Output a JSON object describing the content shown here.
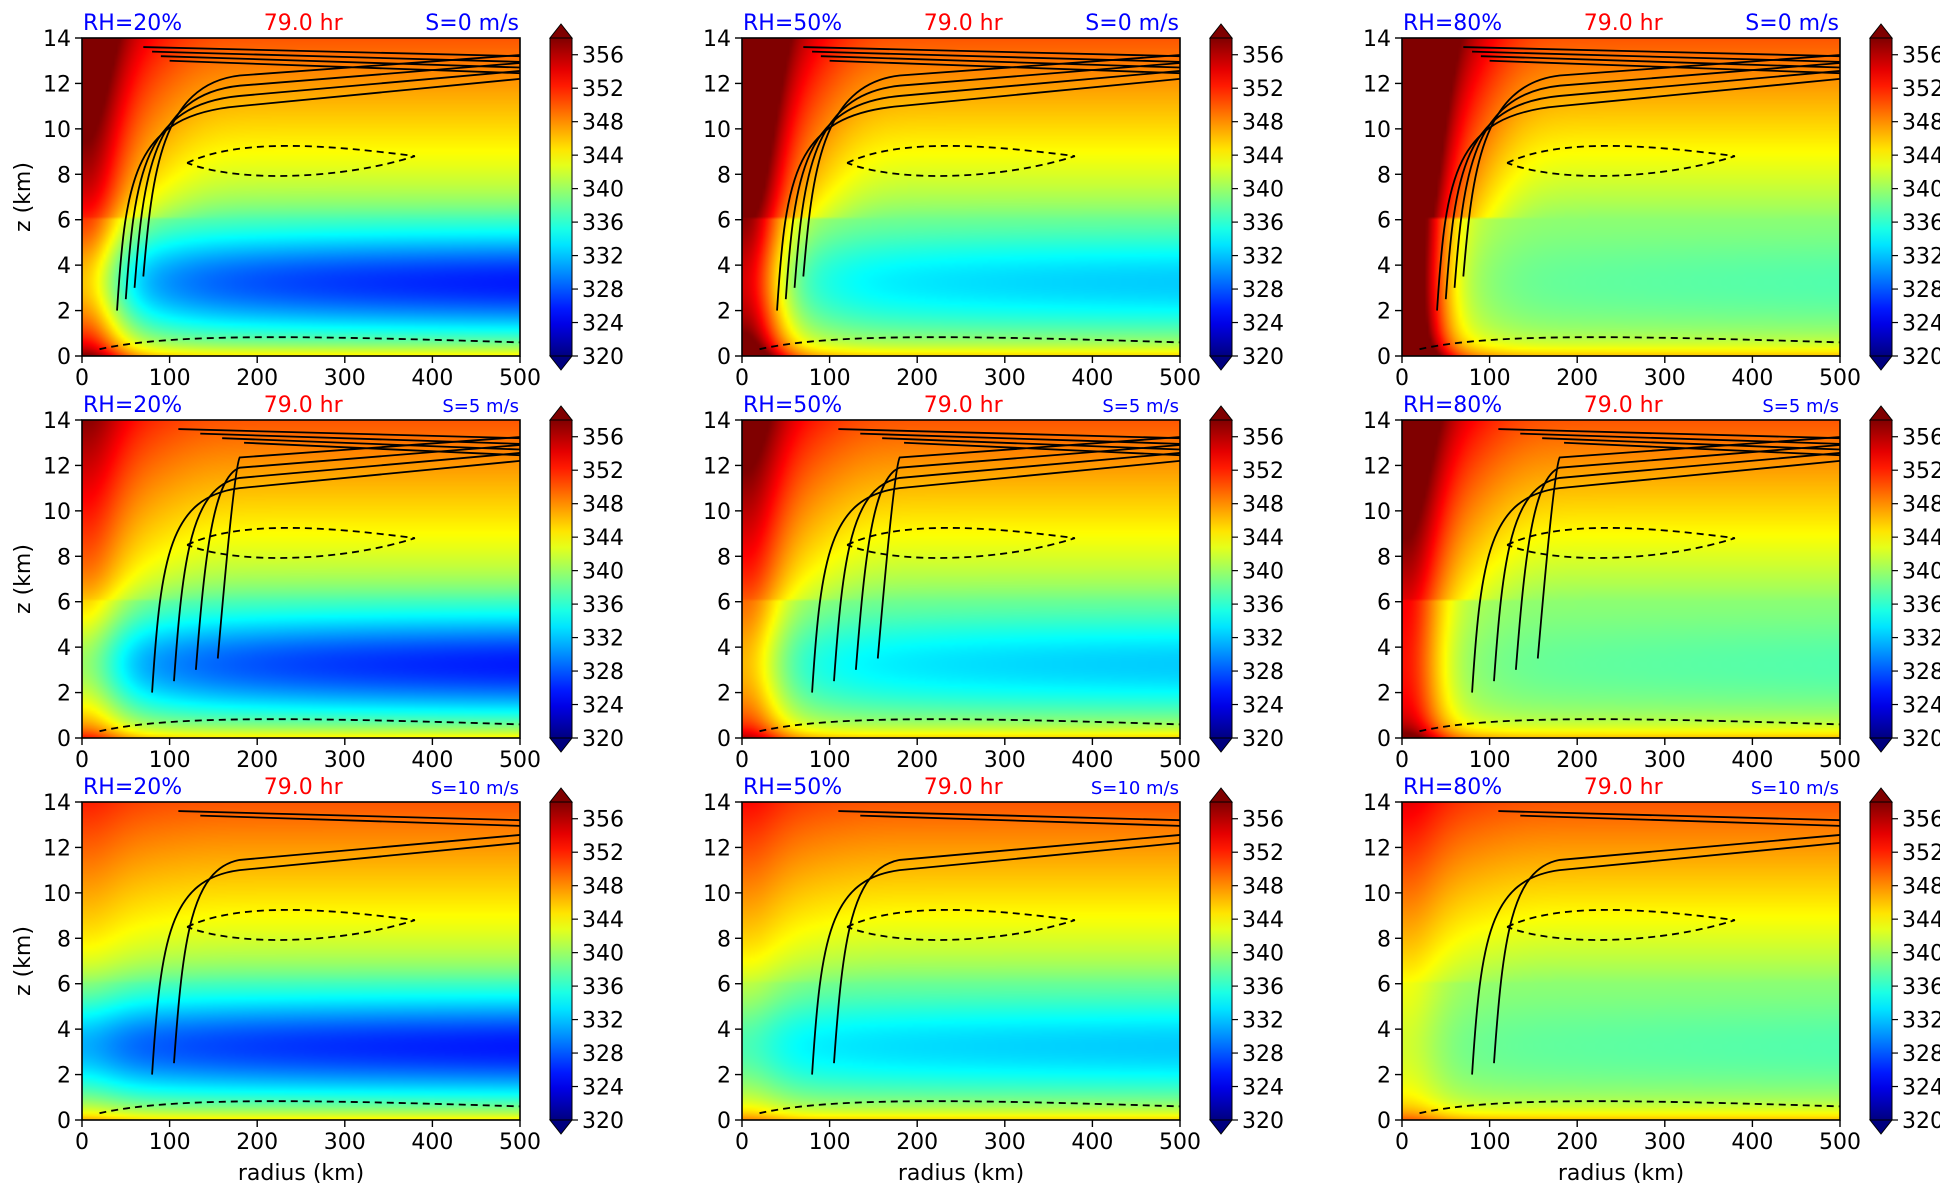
{
  "figure": {
    "panel_ids": [
      "rh20-s0",
      "rh50-s0",
      "rh80-s0",
      "rh20-s5",
      "rh50-s5",
      "rh80-s5",
      "rh20-s10",
      "rh50-s10",
      "rh80-s10"
    ]
  },
  "chart_data": [
    {
      "type": "heatmap",
      "id": "rh20-s0",
      "rh_label": "RH=20%",
      "time_label": "79.0 hr",
      "shear_label": "S=0 m/s",
      "ylabel": "z (km)",
      "xlabel": "",
      "xlim": [
        0,
        500
      ],
      "ylim": [
        0,
        14
      ],
      "x_ticks": [
        "0",
        "100",
        "200",
        "300",
        "400",
        "500"
      ],
      "y_ticks": [
        "0",
        "2",
        "4",
        "6",
        "8",
        "10",
        "12",
        "14"
      ],
      "colorbar": {
        "ticks": [
          "356",
          "352",
          "348",
          "344",
          "340",
          "336",
          "332",
          "328",
          "324",
          "320"
        ],
        "range": [
          320,
          358
        ]
      }
    },
    {
      "type": "heatmap",
      "id": "rh50-s0",
      "rh_label": "RH=50%",
      "time_label": "79.0 hr",
      "shear_label": "S=0 m/s",
      "ylabel": "",
      "xlabel": "",
      "xlim": [
        0,
        500
      ],
      "ylim": [
        0,
        14
      ],
      "x_ticks": [
        "0",
        "100",
        "200",
        "300",
        "400",
        "500"
      ],
      "y_ticks": [
        "0",
        "2",
        "4",
        "6",
        "8",
        "10",
        "12",
        "14"
      ],
      "colorbar": {
        "ticks": [
          "356",
          "352",
          "348",
          "344",
          "340",
          "336",
          "332",
          "328",
          "324",
          "320"
        ],
        "range": [
          320,
          358
        ]
      }
    },
    {
      "type": "heatmap",
      "id": "rh80-s0",
      "rh_label": "RH=80%",
      "time_label": "79.0 hr",
      "shear_label": "S=0 m/s",
      "ylabel": "",
      "xlabel": "",
      "xlim": [
        0,
        500
      ],
      "ylim": [
        0,
        14
      ],
      "x_ticks": [
        "0",
        "100",
        "200",
        "300",
        "400",
        "500"
      ],
      "y_ticks": [
        "0",
        "2",
        "4",
        "6",
        "8",
        "10",
        "12",
        "14"
      ],
      "colorbar": {
        "ticks": [
          "356",
          "352",
          "348",
          "344",
          "340",
          "336",
          "332",
          "328",
          "324",
          "320"
        ],
        "range": [
          320,
          358
        ]
      }
    },
    {
      "type": "heatmap",
      "id": "rh20-s5",
      "rh_label": "RH=20%",
      "time_label": "79.0 hr",
      "shear_label": "S=5 m/s",
      "ylabel": "z (km)",
      "xlabel": "",
      "xlim": [
        0,
        500
      ],
      "ylim": [
        0,
        14
      ],
      "x_ticks": [
        "0",
        "100",
        "200",
        "300",
        "400",
        "500"
      ],
      "y_ticks": [
        "0",
        "2",
        "4",
        "6",
        "8",
        "10",
        "12",
        "14"
      ],
      "colorbar": {
        "ticks": [
          "356",
          "352",
          "348",
          "344",
          "340",
          "336",
          "332",
          "328",
          "324",
          "320"
        ],
        "range": [
          320,
          358
        ]
      }
    },
    {
      "type": "heatmap",
      "id": "rh50-s5",
      "rh_label": "RH=50%",
      "time_label": "79.0 hr",
      "shear_label": "S=5 m/s",
      "ylabel": "",
      "xlabel": "",
      "xlim": [
        0,
        500
      ],
      "ylim": [
        0,
        14
      ],
      "x_ticks": [
        "0",
        "100",
        "200",
        "300",
        "400",
        "500"
      ],
      "y_ticks": [
        "0",
        "2",
        "4",
        "6",
        "8",
        "10",
        "12",
        "14"
      ],
      "colorbar": {
        "ticks": [
          "356",
          "352",
          "348",
          "344",
          "340",
          "336",
          "332",
          "328",
          "324",
          "320"
        ],
        "range": [
          320,
          358
        ]
      }
    },
    {
      "type": "heatmap",
      "id": "rh80-s5",
      "rh_label": "RH=80%",
      "time_label": "79.0 hr",
      "shear_label": "S=5 m/s",
      "ylabel": "",
      "xlabel": "",
      "xlim": [
        0,
        500
      ],
      "ylim": [
        0,
        14
      ],
      "x_ticks": [
        "0",
        "100",
        "200",
        "300",
        "400",
        "500"
      ],
      "y_ticks": [
        "0",
        "2",
        "4",
        "6",
        "8",
        "10",
        "12",
        "14"
      ],
      "colorbar": {
        "ticks": [
          "356",
          "352",
          "348",
          "344",
          "340",
          "336",
          "332",
          "328",
          "324",
          "320"
        ],
        "range": [
          320,
          358
        ]
      }
    },
    {
      "type": "heatmap",
      "id": "rh20-s10",
      "rh_label": "RH=20%",
      "time_label": "79.0 hr",
      "shear_label": "S=10 m/s",
      "ylabel": "z (km)",
      "xlabel": "radius (km)",
      "xlim": [
        0,
        500
      ],
      "ylim": [
        0,
        14
      ],
      "x_ticks": [
        "0",
        "100",
        "200",
        "300",
        "400",
        "500"
      ],
      "y_ticks": [
        "0",
        "2",
        "4",
        "6",
        "8",
        "10",
        "12",
        "14"
      ],
      "colorbar": {
        "ticks": [
          "356",
          "352",
          "348",
          "344",
          "340",
          "336",
          "332",
          "328",
          "324",
          "320"
        ],
        "range": [
          320,
          358
        ]
      }
    },
    {
      "type": "heatmap",
      "id": "rh50-s10",
      "rh_label": "RH=50%",
      "time_label": "79.0 hr",
      "shear_label": "S=10 m/s",
      "ylabel": "",
      "xlabel": "radius (km)",
      "xlim": [
        0,
        500
      ],
      "ylim": [
        0,
        14
      ],
      "x_ticks": [
        "0",
        "100",
        "200",
        "300",
        "400",
        "500"
      ],
      "y_ticks": [
        "0",
        "2",
        "4",
        "6",
        "8",
        "10",
        "12",
        "14"
      ],
      "colorbar": {
        "ticks": [
          "356",
          "352",
          "348",
          "344",
          "340",
          "336",
          "332",
          "328",
          "324",
          "320"
        ],
        "range": [
          320,
          358
        ]
      }
    },
    {
      "type": "heatmap",
      "id": "rh80-s10",
      "rh_label": "RH=80%",
      "time_label": "79.0 hr",
      "shear_label": "S=10 m/s",
      "ylabel": "",
      "xlabel": "radius (km)",
      "xlim": [
        0,
        500
      ],
      "ylim": [
        0,
        14
      ],
      "x_ticks": [
        "0",
        "100",
        "200",
        "300",
        "400",
        "500"
      ],
      "y_ticks": [
        "0",
        "2",
        "4",
        "6",
        "8",
        "10",
        "12",
        "14"
      ],
      "colorbar": {
        "ticks": [
          "356",
          "352",
          "348",
          "344",
          "340",
          "336",
          "332",
          "328",
          "324",
          "320"
        ],
        "range": [
          320,
          358
        ]
      }
    }
  ],
  "colors": {
    "rh_label": "#0000ff",
    "time_label": "#ff0000",
    "shear_label": "#0000ff",
    "contour": "#000000"
  }
}
